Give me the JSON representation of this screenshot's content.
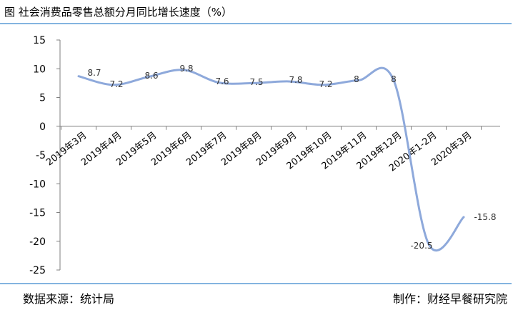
{
  "header": {
    "title": "图  社会消费品零售总额分月同比增长速度（%）"
  },
  "footer": {
    "source": "数据来源：统计局",
    "credit": "制作：财经早餐研究院"
  },
  "colors": {
    "line": "#8EA9DB",
    "rule": "#5B9BD5",
    "axis": "#7F7F7F"
  },
  "chart_data": {
    "type": "line",
    "title": "社会消费品零售总额分月同比增长速度（%）",
    "categories": [
      "2019年3月",
      "2019年4月",
      "2019年5月",
      "2019年6月",
      "2019年7月",
      "2019年8月",
      "2019年9月",
      "2019年10月",
      "2019年11月",
      "2019年12月",
      "2020年1-2月",
      "2020年3月"
    ],
    "series": [
      {
        "values": [
          8.7,
          7.2,
          8.6,
          9.8,
          7.6,
          7.5,
          7.8,
          7.2,
          8,
          8,
          -20.5,
          -15.8
        ]
      }
    ],
    "data_labels": [
      "8.7",
      "7.2",
      "8.6",
      "9.8",
      "7.6",
      "7.5",
      "7.8",
      "7.2",
      "8",
      "8",
      "-20.5",
      "-15.8"
    ],
    "ylim": [
      -25,
      15
    ],
    "yticks": [
      15,
      10,
      5,
      0,
      -5,
      -10,
      -15,
      -20,
      -25
    ],
    "grid": false,
    "smooth": true,
    "xlabel": "",
    "ylabel": ""
  }
}
